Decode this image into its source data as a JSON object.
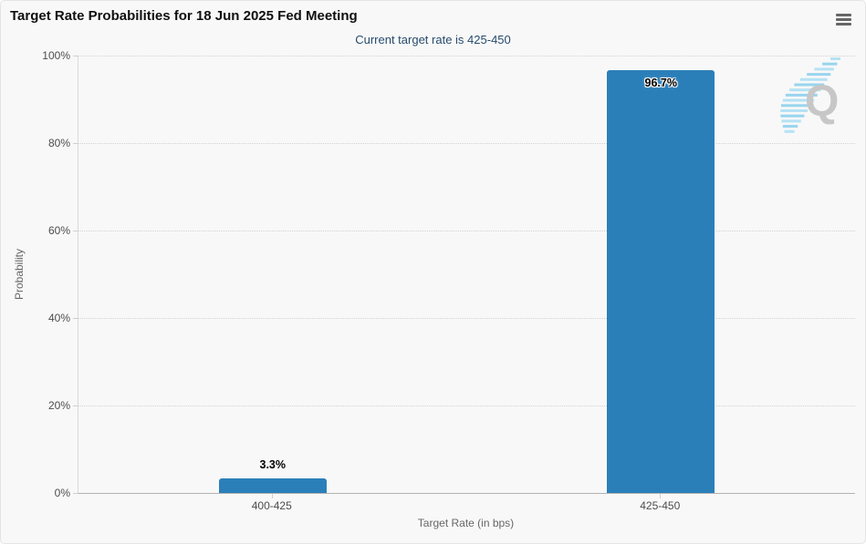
{
  "header": {
    "title": "Target Rate Probabilities for 18 Jun 2025 Fed Meeting",
    "subtitle": "Current target rate is 425-450",
    "menu_icon": "hamburger-icon"
  },
  "chart_data": {
    "type": "bar",
    "title": "Target Rate Probabilities for 18 Jun 2025 Fed Meeting",
    "subtitle": "Current target rate is 425-450",
    "categories": [
      "400-425",
      "425-450"
    ],
    "values": [
      3.3,
      96.7
    ],
    "value_labels": [
      "3.3%",
      "96.7%"
    ],
    "label_inside": [
      false,
      true
    ],
    "xlabel": "Target Rate (in bps)",
    "ylabel": "Probability",
    "ylim": [
      0,
      100
    ],
    "ytick_step": 20,
    "ytick_labels": [
      "0%",
      "20%",
      "40%",
      "60%",
      "80%",
      "100%"
    ],
    "grid": "dotted horizontal, legend off",
    "bar_color": "#2b7fb9",
    "background_color": "#f8f8f8",
    "subtitle_color": "#274b6d"
  },
  "watermark": {
    "letter": "Q",
    "letter_color": "#c7c7c7",
    "stripe_color_light": "#b5e2f4",
    "stripe_color_dark": "#98d5ee"
  }
}
